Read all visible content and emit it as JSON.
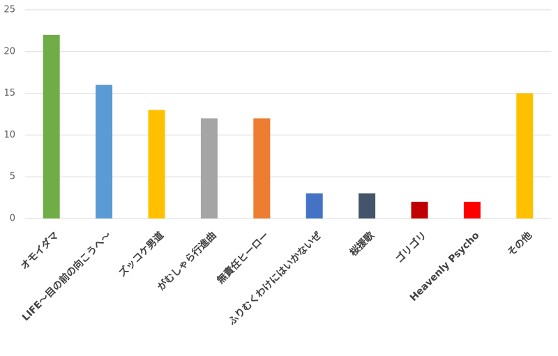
{
  "chart_data": {
    "type": "bar",
    "categories": [
      "オモイダマ",
      "LIFE～目の前の向こうへ～",
      "ズッコケ男道",
      "がむしゃら行進曲",
      "無責任ヒーロー",
      "ふりむくわけにはいかないぜ",
      "桜援歌",
      "ゴリゴリ",
      "Heavenly Psycho",
      "その他"
    ],
    "values": [
      22,
      16,
      13,
      12,
      12,
      3,
      3,
      2,
      2,
      15
    ],
    "colors": [
      "#70ad47",
      "#5b9bd5",
      "#ffc000",
      "#a5a5a5",
      "#ed7d31",
      "#4472c4",
      "#44546a",
      "#c00000",
      "#ff0000",
      "#ffc000"
    ],
    "ylim": [
      0,
      25
    ],
    "yticks": [
      0,
      5,
      10,
      15,
      20,
      25
    ],
    "grid": true
  }
}
